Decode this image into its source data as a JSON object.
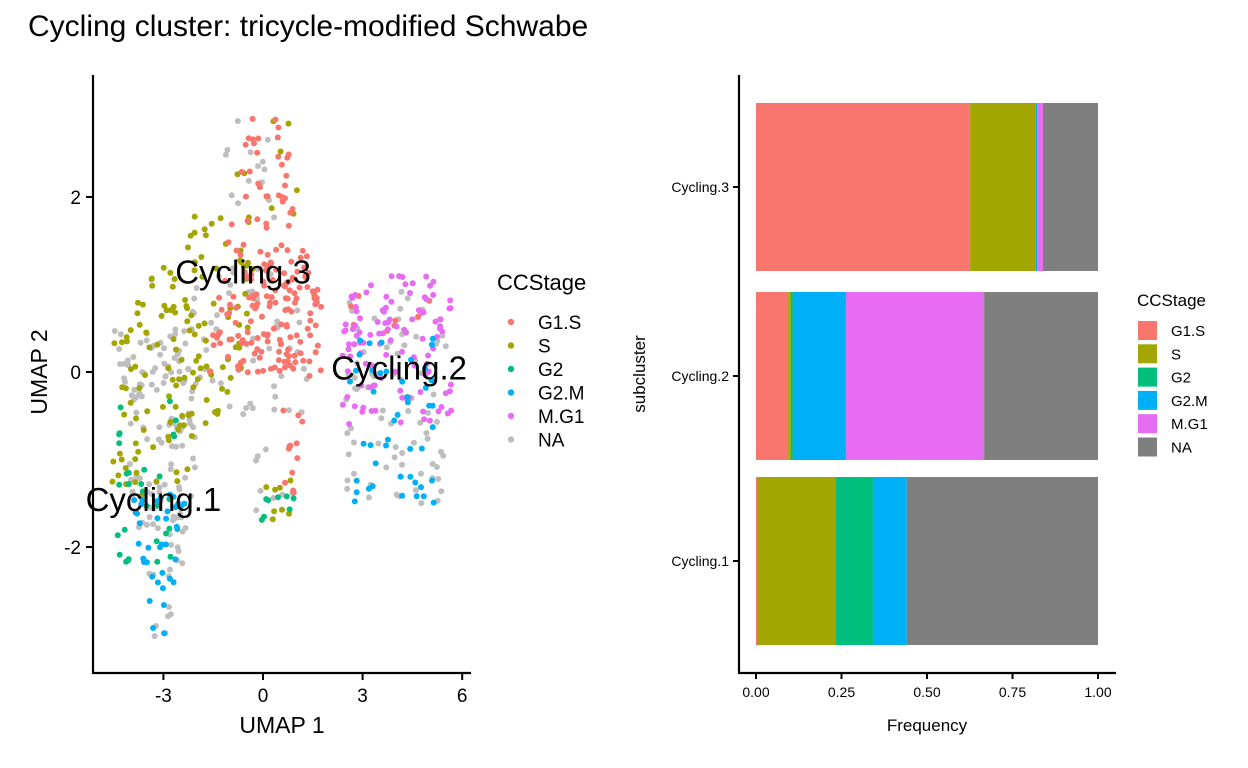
{
  "title": "Cycling cluster: tricycle-modified Schwabe",
  "colors": {
    "G1.S": "#F8766D",
    "S": "#A3A500",
    "G2": "#00BF7D",
    "G2.M": "#00B0F6",
    "M.G1": "#E76BF3",
    "NA_points": "#BEBEBE",
    "NA_bars": "#7F7F7F"
  },
  "chart_data": [
    {
      "type": "scatter",
      "title": "",
      "xlabel": "UMAP 1",
      "ylabel": "UMAP 2",
      "xlim": [
        -5.2,
        6.2
      ],
      "ylim": [
        -3.45,
        3.4
      ],
      "xticks": [
        "-3",
        "0",
        "3",
        "6"
      ],
      "yticks": [
        "-2",
        "0",
        "2"
      ],
      "grid": false,
      "legend": {
        "title": "CCStage",
        "position": "right",
        "entries": [
          "G1.S",
          "S",
          "G2",
          "G2.M",
          "M.G1",
          "NA"
        ]
      },
      "cluster_labels": [
        {
          "text": "Cycling.3",
          "x": -0.6,
          "y": 1.15
        },
        {
          "text": "Cycling.2",
          "x": 4.1,
          "y": 0.05
        },
        {
          "text": "Cycling.1",
          "x": -3.3,
          "y": -1.45
        }
      ],
      "point_groups": [
        {
          "stage": "G1.S",
          "n": 150,
          "x": [
            -2.0,
            1.8
          ],
          "y": [
            0.0,
            3.0
          ],
          "shape": "peak"
        },
        {
          "stage": "G1.S",
          "n": 40,
          "x": [
            -0.5,
            1.8
          ],
          "y": [
            -0.1,
            1.0
          ],
          "shape": "box"
        },
        {
          "stage": "G1.S",
          "n": 12,
          "x": [
            0.6,
            1.2
          ],
          "y": [
            -1.4,
            -0.3
          ],
          "shape": "box"
        },
        {
          "stage": "G1.S",
          "n": 8,
          "x": [
            2.4,
            5.5
          ],
          "y": [
            0.3,
            1.0
          ],
          "shape": "box"
        },
        {
          "stage": "S",
          "n": 140,
          "x": [
            -4.6,
            -0.3
          ],
          "y": [
            -1.4,
            1.9
          ],
          "shape": "left"
        },
        {
          "stage": "S",
          "n": 8,
          "x": [
            -1.2,
            1.2
          ],
          "y": [
            1.8,
            2.9
          ],
          "shape": "box"
        },
        {
          "stage": "S",
          "n": 8,
          "x": [
            -0.3,
            1.0
          ],
          "y": [
            -1.7,
            -1.2
          ],
          "shape": "box"
        },
        {
          "stage": "G2",
          "n": 30,
          "x": [
            -4.4,
            -2.5
          ],
          "y": [
            -2.2,
            -0.3
          ],
          "shape": "box"
        },
        {
          "stage": "G2",
          "n": 8,
          "x": [
            -0.2,
            1.0
          ],
          "y": [
            -1.7,
            -1.4
          ],
          "shape": "box"
        },
        {
          "stage": "G2.M",
          "n": 40,
          "x": [
            -4.0,
            -2.2
          ],
          "y": [
            -3.0,
            -1.4
          ],
          "shape": "vee"
        },
        {
          "stage": "G2.M",
          "n": 45,
          "x": [
            2.6,
            5.2
          ],
          "y": [
            -1.5,
            0.4
          ],
          "shape": "box"
        },
        {
          "stage": "M.G1",
          "n": 110,
          "x": [
            2.4,
            5.7
          ],
          "y": [
            -0.6,
            1.1
          ],
          "shape": "box"
        },
        {
          "stage": "NA",
          "n": 140,
          "x": [
            -4.6,
            -1.5
          ],
          "y": [
            -3.1,
            0.5
          ],
          "shape": "vee"
        },
        {
          "stage": "NA",
          "n": 60,
          "x": [
            -3.0,
            1.5
          ],
          "y": [
            -0.5,
            2.9
          ],
          "shape": "peak"
        },
        {
          "stage": "NA",
          "n": 80,
          "x": [
            2.5,
            5.6
          ],
          "y": [
            -1.5,
            1.0
          ],
          "shape": "box"
        },
        {
          "stage": "NA",
          "n": 8,
          "x": [
            -0.3,
            1.0
          ],
          "y": [
            -1.6,
            -0.8
          ],
          "shape": "box"
        }
      ]
    },
    {
      "type": "bar",
      "orientation": "horizontal",
      "stacked": true,
      "xlabel": "Frequency",
      "ylabel": "subcluster",
      "xlim": [
        0,
        1
      ],
      "xticks": [
        "0.00",
        "0.25",
        "0.50",
        "0.75",
        "1.00"
      ],
      "categories": [
        "Cycling.1",
        "Cycling.2",
        "Cycling.3"
      ],
      "legend": {
        "title": "CCStage",
        "position": "right",
        "entries": [
          "G1.S",
          "S",
          "G2",
          "G2.M",
          "M.G1",
          "NA"
        ]
      },
      "series": [
        {
          "name": "G1.S",
          "values": [
            0.003,
            0.094,
            0.626
          ]
        },
        {
          "name": "S",
          "values": [
            0.231,
            0.008,
            0.19
          ]
        },
        {
          "name": "G2",
          "values": [
            0.108,
            0.006,
            0.002
          ]
        },
        {
          "name": "G2.M",
          "values": [
            0.099,
            0.155,
            0.004
          ]
        },
        {
          "name": "M.G1",
          "values": [
            0.0,
            0.404,
            0.017
          ]
        },
        {
          "name": "NA",
          "values": [
            0.559,
            0.333,
            0.161
          ]
        }
      ]
    }
  ]
}
